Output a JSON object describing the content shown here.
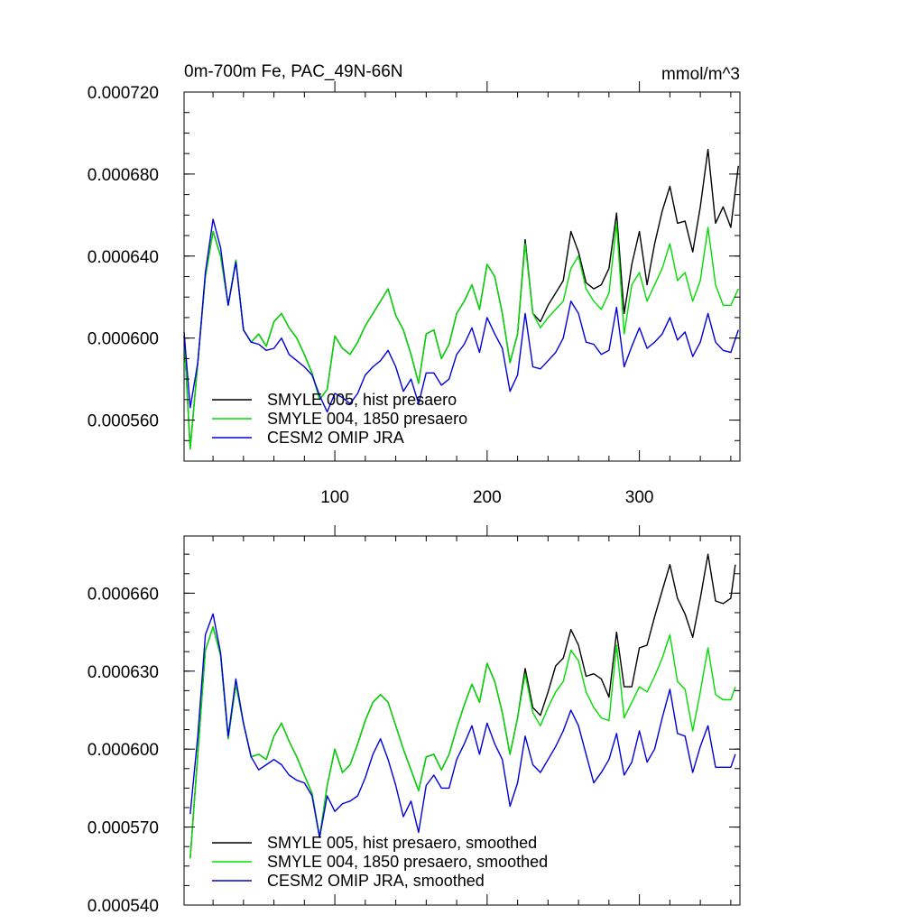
{
  "colors": {
    "smyle005": "#000000",
    "smyle004": "#00dd00",
    "omip": "#0000dd"
  },
  "chart_data": [
    {
      "type": "line",
      "title": "0m-700m Fe, PAC_49N-66N",
      "units": "mmol/m^3",
      "xlim": [
        1,
        366
      ],
      "ylim": [
        0.00054,
        0.00072
      ],
      "yticks": [
        "0.000720",
        "0.000680",
        "0.000640",
        "0.000600",
        "0.000560"
      ],
      "xticks": [
        "100",
        "200",
        "300"
      ],
      "legend_position": "bottom-left",
      "series": [
        {
          "name": "SMYLE 005, hist presaero",
          "color": "#000000",
          "x": [
            1,
            5,
            10,
            15,
            20,
            25,
            30,
            35,
            40,
            45,
            50,
            55,
            60,
            65,
            70,
            75,
            80,
            85,
            90,
            95,
            100,
            105,
            110,
            115,
            120,
            125,
            130,
            135,
            140,
            145,
            150,
            155,
            160,
            165,
            170,
            175,
            180,
            185,
            190,
            195,
            200,
            205,
            210,
            215,
            220,
            225,
            230,
            235,
            240,
            245,
            250,
            255,
            260,
            265,
            270,
            275,
            280,
            285,
            290,
            295,
            300,
            305,
            310,
            315,
            320,
            325,
            330,
            335,
            340,
            345,
            350,
            355,
            360,
            365
          ],
          "y": [
            0.000601,
            0.000546,
            0.000588,
            0.00063,
            0.000652,
            0.00064,
            0.000616,
            0.000638,
            0.000604,
            0.000598,
            0.000602,
            0.000596,
            0.000608,
            0.000612,
            0.000605,
            0.0006,
            0.000592,
            0.000583,
            0.00057,
            0.000575,
            0.000601,
            0.000595,
            0.000592,
            0.000598,
            0.000606,
            0.000612,
            0.000618,
            0.000624,
            0.000611,
            0.000604,
            0.000592,
            0.000578,
            0.000602,
            0.000604,
            0.00059,
            0.000597,
            0.000612,
            0.000618,
            0.000626,
            0.000614,
            0.000636,
            0.00063,
            0.000612,
            0.000588,
            0.000602,
            0.000648,
            0.000612,
            0.000608,
            0.000616,
            0.000622,
            0.000628,
            0.000652,
            0.000642,
            0.000627,
            0.000624,
            0.000626,
            0.000634,
            0.000661,
            0.000612,
            0.000636,
            0.000652,
            0.000626,
            0.000646,
            0.000662,
            0.000674,
            0.000656,
            0.000657,
            0.000642,
            0.000664,
            0.000692,
            0.000656,
            0.000664,
            0.000654,
            0.000684
          ]
        },
        {
          "name": "SMYLE 004, 1850 presaero",
          "color": "#00dd00",
          "x": [
            1,
            5,
            10,
            15,
            20,
            25,
            30,
            35,
            40,
            45,
            50,
            55,
            60,
            65,
            70,
            75,
            80,
            85,
            90,
            95,
            100,
            105,
            110,
            115,
            120,
            125,
            130,
            135,
            140,
            145,
            150,
            155,
            160,
            165,
            170,
            175,
            180,
            185,
            190,
            195,
            200,
            205,
            210,
            215,
            220,
            225,
            230,
            235,
            240,
            245,
            250,
            255,
            260,
            265,
            270,
            275,
            280,
            285,
            290,
            295,
            300,
            305,
            310,
            315,
            320,
            325,
            330,
            335,
            340,
            345,
            350,
            355,
            360,
            365
          ],
          "y": [
            0.000601,
            0.000546,
            0.000588,
            0.00063,
            0.000652,
            0.00064,
            0.000616,
            0.000638,
            0.000604,
            0.000598,
            0.000602,
            0.000596,
            0.000608,
            0.000612,
            0.000605,
            0.0006,
            0.000592,
            0.000583,
            0.00057,
            0.000575,
            0.000601,
            0.000595,
            0.000592,
            0.000598,
            0.000606,
            0.000612,
            0.000618,
            0.000624,
            0.000611,
            0.000604,
            0.000592,
            0.000578,
            0.000602,
            0.000604,
            0.00059,
            0.000597,
            0.000612,
            0.000618,
            0.000626,
            0.000614,
            0.000636,
            0.00063,
            0.000612,
            0.000588,
            0.000602,
            0.000646,
            0.000612,
            0.000605,
            0.00061,
            0.000614,
            0.000618,
            0.000634,
            0.00064,
            0.000624,
            0.000618,
            0.000614,
            0.000622,
            0.000656,
            0.000602,
            0.000626,
            0.000632,
            0.000618,
            0.000626,
            0.000634,
            0.000646,
            0.000628,
            0.000632,
            0.000618,
            0.000628,
            0.000654,
            0.000626,
            0.000616,
            0.000616,
            0.000624
          ]
        },
        {
          "name": "CESM2 OMIP JRA",
          "color": "#0000dd",
          "x": [
            1,
            5,
            10,
            15,
            20,
            25,
            30,
            35,
            40,
            45,
            50,
            55,
            60,
            65,
            70,
            75,
            80,
            85,
            90,
            95,
            100,
            105,
            110,
            115,
            120,
            125,
            130,
            135,
            140,
            145,
            150,
            155,
            160,
            165,
            170,
            175,
            180,
            185,
            190,
            195,
            200,
            205,
            210,
            215,
            220,
            225,
            230,
            235,
            240,
            245,
            250,
            255,
            260,
            265,
            270,
            275,
            280,
            285,
            290,
            295,
            300,
            305,
            310,
            315,
            320,
            325,
            330,
            335,
            340,
            345,
            350,
            355,
            360,
            365
          ],
          "y": [
            0.000603,
            0.000566,
            0.000588,
            0.000632,
            0.000658,
            0.000644,
            0.000616,
            0.000637,
            0.000604,
            0.000598,
            0.000597,
            0.000594,
            0.000595,
            0.0006,
            0.000592,
            0.000589,
            0.000586,
            0.000582,
            0.000572,
            0.000564,
            0.000573,
            0.000571,
            0.000568,
            0.000573,
            0.000582,
            0.000586,
            0.000589,
            0.000594,
            0.000586,
            0.000574,
            0.00058,
            0.000568,
            0.000583,
            0.000583,
            0.000577,
            0.00058,
            0.000592,
            0.000597,
            0.000605,
            0.000593,
            0.00061,
            0.000602,
            0.000595,
            0.000574,
            0.000582,
            0.000612,
            0.000586,
            0.000585,
            0.000589,
            0.000593,
            0.0006,
            0.000618,
            0.000612,
            0.000598,
            0.000597,
            0.000592,
            0.000594,
            0.000615,
            0.000586,
            0.000596,
            0.000605,
            0.000595,
            0.000598,
            0.000602,
            0.00061,
            0.000599,
            0.000603,
            0.000591,
            0.000598,
            0.000612,
            0.000598,
            0.000594,
            0.000593,
            0.000604
          ]
        }
      ]
    },
    {
      "type": "line",
      "title": "",
      "xlim": [
        1,
        366
      ],
      "ylim": [
        0.00054,
        0.000682
      ],
      "yticks": [
        "0.000660",
        "0.000630",
        "0.000600",
        "0.000570",
        "0.000540"
      ],
      "xticks": [],
      "legend_position": "bottom-left",
      "series": [
        {
          "name": "SMYLE 005, hist presaero, smoothed",
          "color": "#000000",
          "x": [
            5,
            10,
            15,
            20,
            25,
            30,
            35,
            40,
            45,
            50,
            55,
            60,
            65,
            70,
            75,
            80,
            85,
            90,
            95,
            100,
            105,
            110,
            115,
            120,
            125,
            130,
            135,
            140,
            145,
            150,
            155,
            160,
            165,
            170,
            175,
            180,
            185,
            190,
            195,
            200,
            205,
            210,
            215,
            220,
            225,
            230,
            235,
            240,
            245,
            250,
            255,
            260,
            265,
            270,
            275,
            280,
            285,
            290,
            295,
            300,
            305,
            310,
            315,
            320,
            325,
            330,
            335,
            340,
            345,
            350,
            355,
            360,
            363
          ],
          "y": [
            0.000558,
            0.000598,
            0.000638,
            0.000647,
            0.000636,
            0.000604,
            0.000625,
            0.00061,
            0.000597,
            0.000598,
            0.000596,
            0.000605,
            0.00061,
            0.000603,
            0.000597,
            0.00059,
            0.000583,
            0.000566,
            0.000586,
            0.0006,
            0.000591,
            0.000594,
            0.000602,
            0.000611,
            0.000618,
            0.000621,
            0.000618,
            0.000609,
            0.0006,
            0.000592,
            0.000584,
            0.000597,
            0.000598,
            0.000592,
            0.000598,
            0.000608,
            0.000617,
            0.000625,
            0.000618,
            0.000633,
            0.000626,
            0.000614,
            0.000598,
            0.000612,
            0.000631,
            0.000616,
            0.000613,
            0.000622,
            0.000632,
            0.000635,
            0.000646,
            0.00064,
            0.000628,
            0.000629,
            0.000627,
            0.00062,
            0.000645,
            0.000624,
            0.000624,
            0.000639,
            0.00064,
            0.000651,
            0.000661,
            0.000671,
            0.000658,
            0.000652,
            0.000643,
            0.000658,
            0.000675,
            0.000657,
            0.000656,
            0.000658,
            0.000671
          ]
        },
        {
          "name": "SMYLE 004, 1850 presaero, smoothed",
          "color": "#00dd00",
          "x": [
            5,
            10,
            15,
            20,
            25,
            30,
            35,
            40,
            45,
            50,
            55,
            60,
            65,
            70,
            75,
            80,
            85,
            90,
            95,
            100,
            105,
            110,
            115,
            120,
            125,
            130,
            135,
            140,
            145,
            150,
            155,
            160,
            165,
            170,
            175,
            180,
            185,
            190,
            195,
            200,
            205,
            210,
            215,
            220,
            225,
            230,
            235,
            240,
            245,
            250,
            255,
            260,
            265,
            270,
            275,
            280,
            285,
            290,
            295,
            300,
            305,
            310,
            315,
            320,
            325,
            330,
            335,
            340,
            345,
            350,
            355,
            360,
            363
          ],
          "y": [
            0.000558,
            0.000598,
            0.000638,
            0.000647,
            0.000636,
            0.000604,
            0.000625,
            0.00061,
            0.000597,
            0.000598,
            0.000596,
            0.000605,
            0.00061,
            0.000603,
            0.000597,
            0.00059,
            0.000583,
            0.000566,
            0.000586,
            0.0006,
            0.000591,
            0.000594,
            0.000602,
            0.000611,
            0.000618,
            0.000621,
            0.000618,
            0.000609,
            0.0006,
            0.000592,
            0.000584,
            0.000597,
            0.000598,
            0.000592,
            0.000598,
            0.000608,
            0.000617,
            0.000625,
            0.000618,
            0.000633,
            0.000626,
            0.000614,
            0.000598,
            0.000612,
            0.000629,
            0.000614,
            0.000609,
            0.000616,
            0.000622,
            0.000626,
            0.000638,
            0.000634,
            0.000622,
            0.000616,
            0.000612,
            0.000611,
            0.00064,
            0.000612,
            0.000618,
            0.000624,
            0.000622,
            0.000628,
            0.000635,
            0.000644,
            0.000626,
            0.000623,
            0.000607,
            0.000622,
            0.000639,
            0.000621,
            0.000619,
            0.000619,
            0.000624
          ]
        },
        {
          "name": "CESM2 OMIP JRA, smoothed",
          "color": "#0000dd",
          "x": [
            5,
            10,
            15,
            20,
            25,
            30,
            35,
            40,
            45,
            50,
            55,
            60,
            65,
            70,
            75,
            80,
            85,
            90,
            95,
            100,
            105,
            110,
            115,
            120,
            125,
            130,
            135,
            140,
            145,
            150,
            155,
            160,
            165,
            170,
            175,
            180,
            185,
            190,
            195,
            200,
            205,
            210,
            215,
            220,
            225,
            230,
            235,
            240,
            245,
            250,
            255,
            260,
            265,
            270,
            275,
            280,
            285,
            290,
            295,
            300,
            305,
            310,
            315,
            320,
            325,
            330,
            335,
            340,
            345,
            350,
            355,
            360,
            363
          ],
          "y": [
            0.000575,
            0.000605,
            0.000644,
            0.000652,
            0.000637,
            0.000605,
            0.000627,
            0.00061,
            0.000597,
            0.000592,
            0.000594,
            0.000596,
            0.000594,
            0.00059,
            0.000588,
            0.000587,
            0.000582,
            0.000566,
            0.000582,
            0.000576,
            0.000579,
            0.00058,
            0.000582,
            0.000589,
            0.000598,
            0.000604,
            0.000596,
            0.000586,
            0.000574,
            0.00058,
            0.000568,
            0.000586,
            0.00059,
            0.000585,
            0.000585,
            0.000596,
            0.000602,
            0.000609,
            0.000598,
            0.00061,
            0.000602,
            0.000596,
            0.000578,
            0.000587,
            0.000605,
            0.000594,
            0.000591,
            0.000596,
            0.000601,
            0.000607,
            0.000615,
            0.000609,
            0.000598,
            0.000587,
            0.000591,
            0.000596,
            0.000606,
            0.00059,
            0.000595,
            0.000607,
            0.000595,
            0.0006,
            0.000612,
            0.000623,
            0.000606,
            0.000605,
            0.000591,
            0.000601,
            0.000609,
            0.000593,
            0.000593,
            0.000593,
            0.000598
          ]
        }
      ]
    }
  ]
}
